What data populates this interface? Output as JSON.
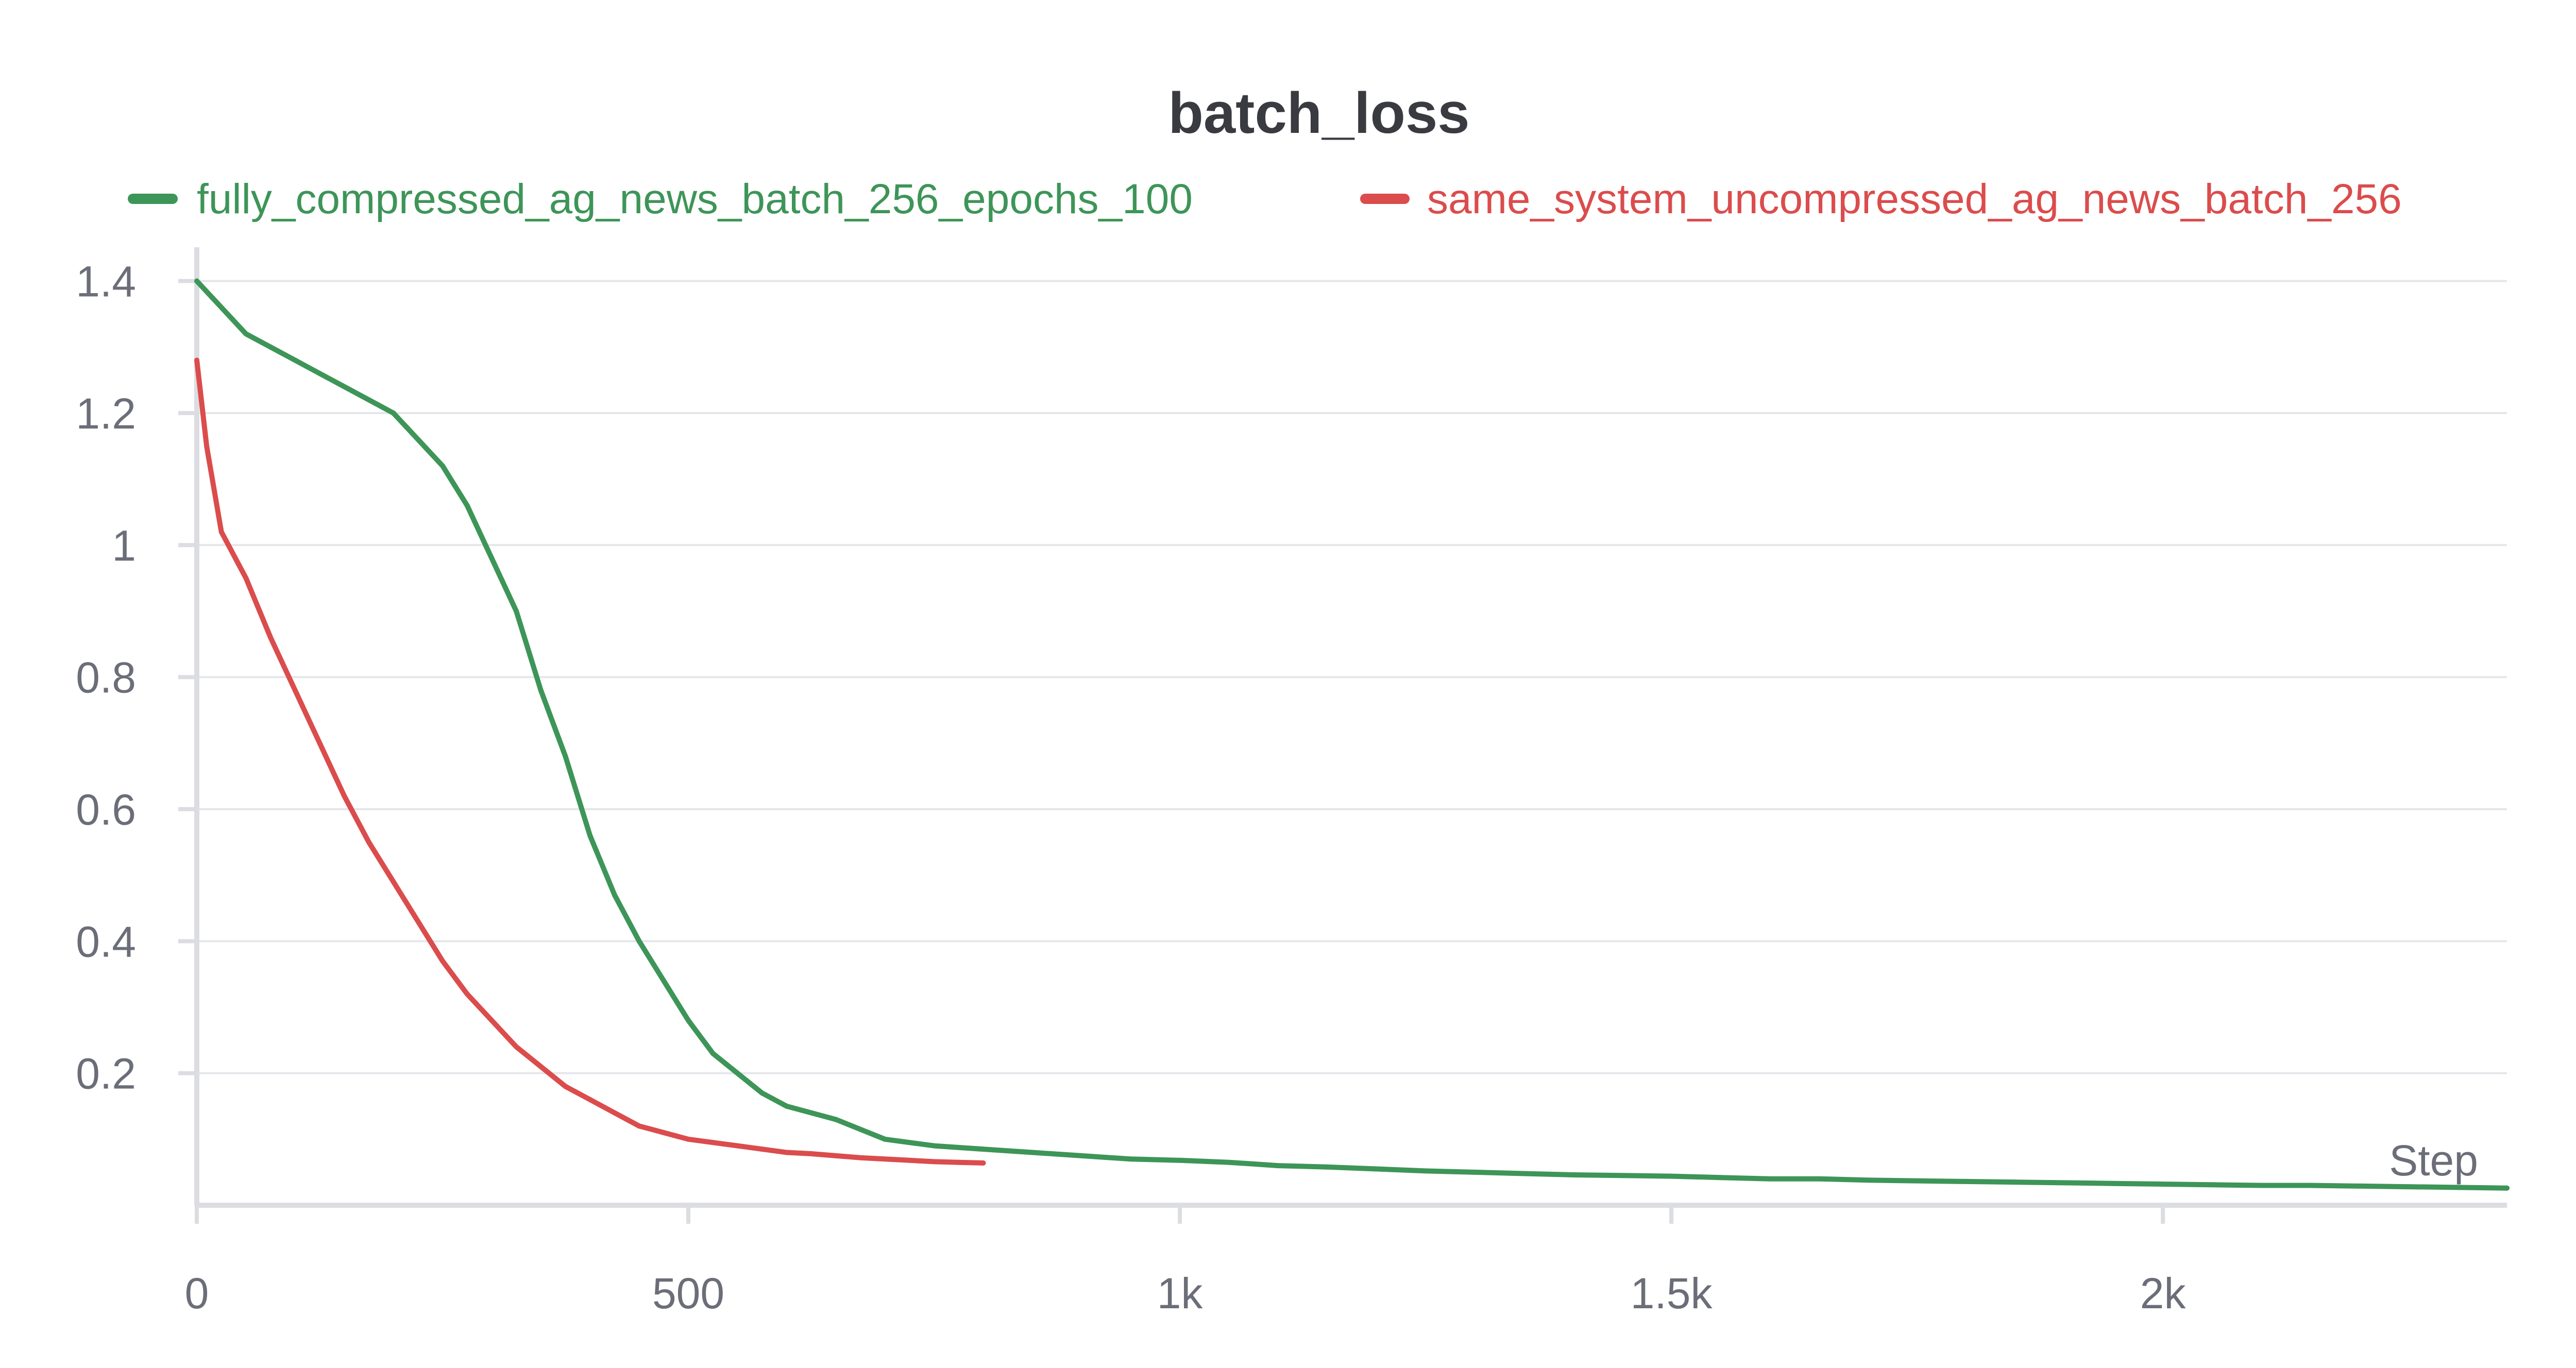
{
  "chart_data": {
    "type": "line",
    "title": "batch_loss",
    "xlabel": "Step",
    "ylabel": "",
    "xlim": [
      0,
      2350
    ],
    "ylim": [
      0,
      1.42
    ],
    "grid": true,
    "legend_position": "top",
    "x_ticks": [
      {
        "value": 0,
        "label": "0"
      },
      {
        "value": 500,
        "label": "500"
      },
      {
        "value": 1000,
        "label": "1k"
      },
      {
        "value": 1500,
        "label": "1.5k"
      },
      {
        "value": 2000,
        "label": "2k"
      }
    ],
    "y_ticks": [
      {
        "value": 0.2,
        "label": "0.2"
      },
      {
        "value": 0.4,
        "label": "0.4"
      },
      {
        "value": 0.6,
        "label": "0.6"
      },
      {
        "value": 0.8,
        "label": "0.8"
      },
      {
        "value": 1.0,
        "label": "1"
      },
      {
        "value": 1.2,
        "label": "1.2"
      },
      {
        "value": 1.4,
        "label": "1.4"
      }
    ],
    "series": [
      {
        "name": "fully_compressed_ag_news_batch_256_epochs_100",
        "color": "#3d9558",
        "x": [
          0,
          25,
          50,
          75,
          100,
          125,
          150,
          175,
          200,
          225,
          250,
          275,
          300,
          325,
          350,
          375,
          400,
          425,
          450,
          475,
          500,
          525,
          550,
          575,
          600,
          625,
          650,
          675,
          700,
          750,
          800,
          850,
          900,
          950,
          1000,
          1050,
          1100,
          1150,
          1200,
          1250,
          1300,
          1350,
          1400,
          1450,
          1500,
          1550,
          1600,
          1650,
          1700,
          1750,
          1800,
          1850,
          1900,
          1950,
          2000,
          2050,
          2100,
          2150,
          2200,
          2250,
          2300,
          2350
        ],
        "y": [
          1.4,
          1.36,
          1.32,
          1.3,
          1.28,
          1.26,
          1.24,
          1.22,
          1.2,
          1.16,
          1.12,
          1.06,
          0.98,
          0.9,
          0.78,
          0.68,
          0.56,
          0.47,
          0.4,
          0.34,
          0.28,
          0.23,
          0.2,
          0.17,
          0.15,
          0.14,
          0.13,
          0.115,
          0.1,
          0.09,
          0.085,
          0.08,
          0.075,
          0.07,
          0.068,
          0.065,
          0.06,
          0.058,
          0.055,
          0.052,
          0.05,
          0.048,
          0.046,
          0.045,
          0.044,
          0.042,
          0.04,
          0.04,
          0.038,
          0.037,
          0.036,
          0.035,
          0.034,
          0.033,
          0.032,
          0.031,
          0.03,
          0.03,
          0.029,
          0.028,
          0.027,
          0.026
        ]
      },
      {
        "name": "same_system_uncompressed_ag_news_batch_256",
        "color": "#db4c4c",
        "x": [
          0,
          10,
          25,
          50,
          75,
          100,
          125,
          150,
          175,
          200,
          225,
          250,
          275,
          300,
          325,
          350,
          375,
          400,
          425,
          450,
          475,
          500,
          525,
          550,
          575,
          600,
          625,
          650,
          675,
          700,
          725,
          750,
          775,
          800
        ],
        "y": [
          1.28,
          1.15,
          1.02,
          0.95,
          0.86,
          0.78,
          0.7,
          0.62,
          0.55,
          0.49,
          0.43,
          0.37,
          0.32,
          0.28,
          0.24,
          0.21,
          0.18,
          0.16,
          0.14,
          0.12,
          0.11,
          0.1,
          0.095,
          0.09,
          0.085,
          0.08,
          0.078,
          0.075,
          0.072,
          0.07,
          0.068,
          0.066,
          0.065,
          0.064
        ]
      }
    ]
  }
}
